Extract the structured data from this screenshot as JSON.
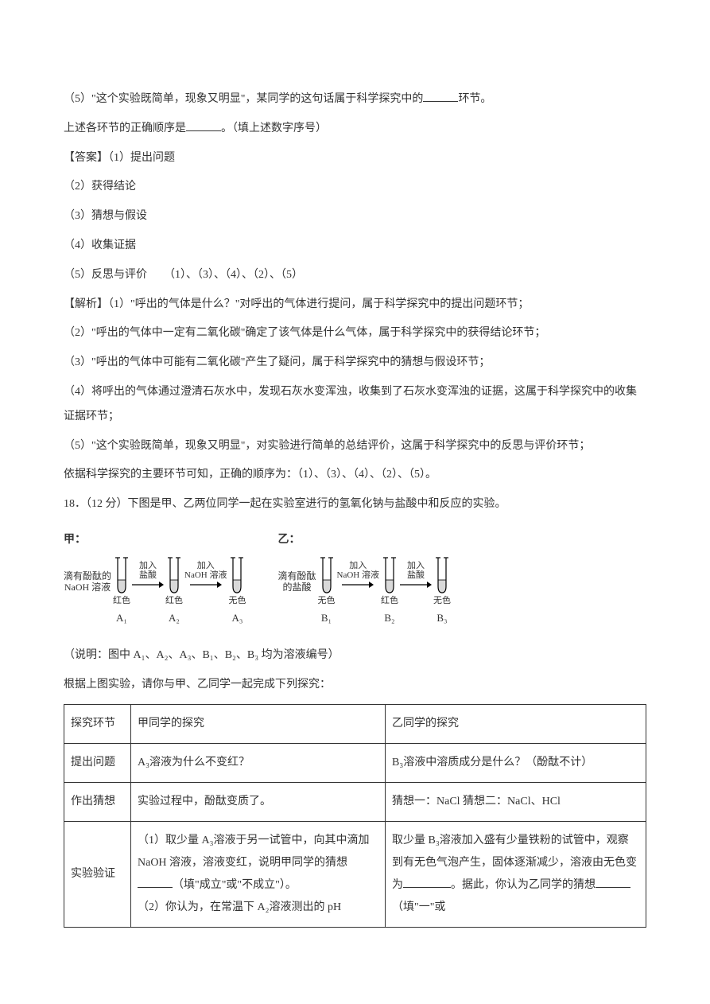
{
  "lines": {
    "l5": "（5）\"这个实验既简单，现象又明显\"，某同学的这句话属于科学探究中的",
    "l5_suffix": "环节。",
    "order_prefix": "上述各环节的正确顺序是",
    "order_suffix": "。（填上述数字序号）",
    "ans_label": "【答案】（1）提出问题",
    "ans2": "（2）获得结论",
    "ans3": "（3）猜想与假设",
    "ans4": "（4）收集证据",
    "ans5": "（5）反思与评价　　（1）、（3）、（4）、（2）、（5）",
    "jx_label": "【解析】（1）\"呼出的气体是什么？\"对呼出的气体进行提问，属于科学探究中的提出问题环节；",
    "jx2": "（2）\"呼出的气体中一定有二氧化碳\"确定了该气体是什么气体，属于科学探究中的获得结论环节；",
    "jx3": "（3）\"呼出的气体中可能有二氧化碳\"产生了疑问，属于科学探究中的猜想与假设环节；",
    "jx4": "（4）将呼出的气体通过澄清石灰水中，发现石灰水变浑浊，收集到了石灰水变浑浊的证据，这属于科学探究中的收集证据环节；",
    "jx5": "（5）\"这个实验既简单，现象又明显\"，对实验进行简单的总结评价，这属于科学探究中的反思与评价环节；",
    "summary": "依据科学探究的主要环节可知，正确的顺序为：（1）、（3）、（4）、（2）、（5）。",
    "q18": "18．（12 分）下图是甲、乙两位同学一起在实验室进行的氢氧化钠与盐酸中和反应的实验。",
    "note": "（说明：图中 A₁、A₂、A₃、B₁、B₂、B₃ 均为溶液编号）",
    "instruction": "根据上图实验，请你与甲、乙同学一起完成下列探究："
  },
  "diagram": {
    "jia": {
      "label": "甲：",
      "left_text1": "滴有酚酞的",
      "left_text2": "NaOH 溶液",
      "tubes": [
        {
          "color": "红色",
          "sub": "A₁"
        },
        {
          "color": "红色",
          "sub": "A₂"
        },
        {
          "color": "无色",
          "sub": "A₃"
        }
      ],
      "arrows": [
        {
          "l1": "加入",
          "l2": "盐酸"
        },
        {
          "l1": "加入",
          "l2": "NaOH 溶液"
        }
      ]
    },
    "yi": {
      "label": "乙：",
      "left_text1": "滴有酚酞",
      "left_text2": "的盐酸",
      "tubes": [
        {
          "color": "无色",
          "sub": "B₁"
        },
        {
          "color": "红色",
          "sub": "B₂"
        },
        {
          "color": "无色",
          "sub": "B₃"
        }
      ],
      "arrows": [
        {
          "l1": "加入",
          "l2": "NaOH 溶液"
        },
        {
          "l1": "加入",
          "l2": "盐酸"
        }
      ]
    },
    "stroke": "#000000"
  },
  "table": {
    "h1": "探究环节",
    "h2": "甲同学的探究",
    "h3": "乙同学的探究",
    "r1c1": "提出问题",
    "r1c2": "A₃溶液为什么不变红？",
    "r1c3": "B₃溶液中溶质成分是什么？（酚酞不计）",
    "r2c1": "作出猜想",
    "r2c2": "实验过程中，酚酞变质了。",
    "r2c3": "猜想一：NaCl 猜想二：NaCl、HCl",
    "r3c1": "实验验证",
    "r3c2a": "（1）取少量 A₃溶液于另一试管中，向其中滴加 NaOH 溶液，溶液变红，说明甲同学的猜想",
    "r3c2b": "（填\"成立\"或\"不成立\"）。",
    "r3c2c": "（2）你认为，在常温下 A₂溶液测出的 pH",
    "r3c3a": "取少量 B₃溶液加入盛有少量铁粉的试管中，观察到有无色气泡产生，固体逐渐减少，溶液由无色变为",
    "r3c3b": "。据此，你认为乙同学的猜想",
    "r3c3c": "（填\"一\"或"
  }
}
